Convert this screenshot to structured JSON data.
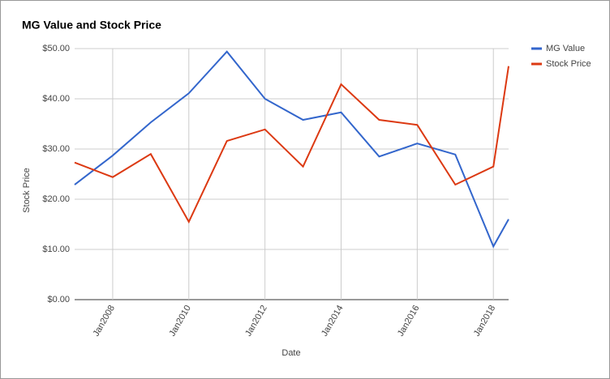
{
  "chart_data": {
    "type": "line",
    "title": "MG Value and Stock Price",
    "x_label": "Date",
    "y_label": "Stock Price",
    "x": [
      2007,
      2008,
      2009,
      2010,
      2011,
      2012,
      2013,
      2014,
      2015,
      2016,
      2017,
      2018,
      2018.4
    ],
    "series": [
      {
        "name": "MG Value",
        "color": "#3366cc",
        "values": [
          22.9,
          28.7,
          35.3,
          41.1,
          49.4,
          40.0,
          35.8,
          37.3,
          28.5,
          31.1,
          28.9,
          10.6,
          16.0
        ]
      },
      {
        "name": "Stock Price",
        "color": "#dc3912",
        "values": [
          27.3,
          24.4,
          29.0,
          15.5,
          31.6,
          33.9,
          26.5,
          42.9,
          35.8,
          34.8,
          22.9,
          26.5,
          46.5
        ]
      }
    ],
    "xlim": [
      2007,
      2018.4
    ],
    "xticks": [
      {
        "value": 2008,
        "label": "Jan2008"
      },
      {
        "value": 2010,
        "label": "Jan2010"
      },
      {
        "value": 2012,
        "label": "Jan2012"
      },
      {
        "value": 2014,
        "label": "Jan2014"
      },
      {
        "value": 2016,
        "label": "Jan2016"
      },
      {
        "value": 2018,
        "label": "Jan2018"
      }
    ],
    "ylim": [
      0,
      50
    ],
    "yticks": [
      {
        "value": 0,
        "label": "$0.00"
      },
      {
        "value": 10,
        "label": "$10.00"
      },
      {
        "value": 20,
        "label": "$20.00"
      },
      {
        "value": 30,
        "label": "$30.00"
      },
      {
        "value": 40,
        "label": "$40.00"
      },
      {
        "value": 50,
        "label": "$50.00"
      }
    ],
    "grid": true,
    "legend": "right"
  }
}
